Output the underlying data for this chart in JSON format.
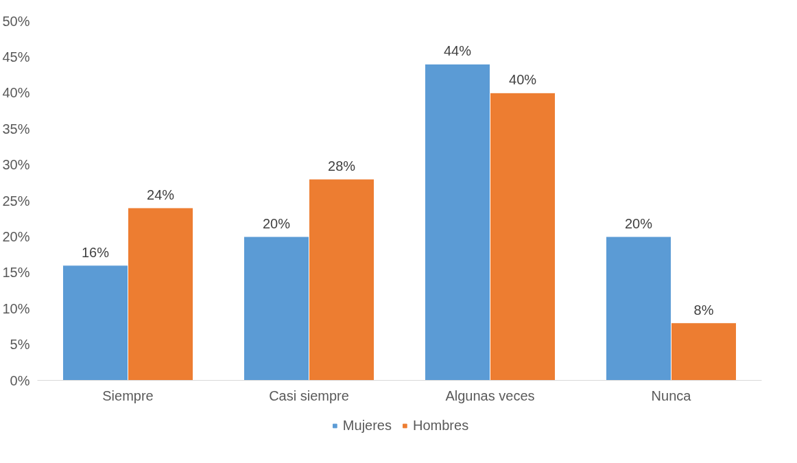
{
  "chart_data": {
    "type": "bar",
    "categories": [
      "Siempre",
      "Casi siempre",
      "Algunas veces",
      "Nunca"
    ],
    "series": [
      {
        "name": "Mujeres",
        "color": "#5b9bd5",
        "values": [
          16,
          20,
          44,
          20
        ],
        "value_labels": [
          "16%",
          "20%",
          "44%",
          "20%"
        ]
      },
      {
        "name": "Hombres",
        "color": "#ed7d31",
        "values": [
          24,
          28,
          40,
          8
        ],
        "value_labels": [
          "24%",
          "28%",
          "40%",
          "8%"
        ]
      }
    ],
    "ylim": [
      0,
      50
    ],
    "yticks": [
      {
        "value": 0,
        "label": "0%"
      },
      {
        "value": 5,
        "label": "5%"
      },
      {
        "value": 10,
        "label": "10%"
      },
      {
        "value": 15,
        "label": "15%"
      },
      {
        "value": 20,
        "label": "20%"
      },
      {
        "value": 25,
        "label": "25%"
      },
      {
        "value": 30,
        "label": "30%"
      },
      {
        "value": 35,
        "label": "35%"
      },
      {
        "value": 40,
        "label": "40%"
      },
      {
        "value": 45,
        "label": "45%"
      },
      {
        "value": 50,
        "label": "50%"
      }
    ],
    "grid": false,
    "legend": "bottom"
  }
}
